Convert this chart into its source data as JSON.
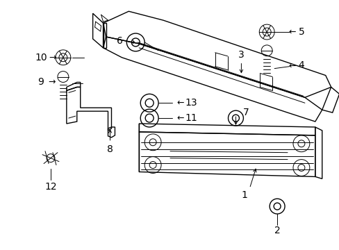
{
  "bg_color": "#ffffff",
  "line_color": "#000000",
  "lw": 1.0,
  "tlw": 0.7,
  "fig_width": 4.89,
  "fig_height": 3.6,
  "dpi": 100
}
